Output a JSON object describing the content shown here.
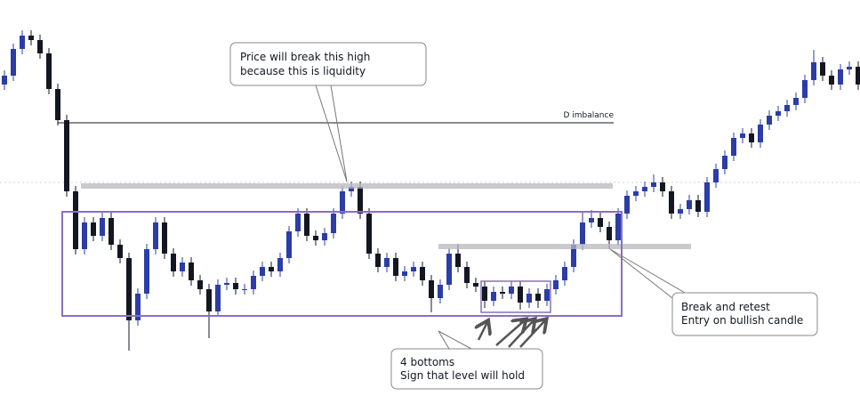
{
  "chart_data": {
    "type": "candlestick",
    "open": [
      359,
      369,
      399,
      414,
      409,
      394,
      354,
      319,
      239,
      174,
      204,
      189,
      209,
      179,
      164,
      94,
      124,
      174,
      204,
      169,
      149,
      159,
      139,
      129,
      104,
      134,
      136,
      129,
      129,
      144,
      154,
      149,
      164,
      194,
      214,
      189,
      184,
      192,
      214,
      239,
      244,
      214,
      169,
      154,
      164,
      144,
      149,
      154,
      139,
      119,
      134,
      169,
      154,
      136,
      132,
      116,
      126,
      124,
      132,
      114,
      124,
      116,
      129,
      139,
      154,
      179,
      204,
      209,
      199,
      184,
      214,
      234,
      239,
      244,
      249,
      239,
      214,
      219,
      229,
      216,
      249,
      264,
      279,
      299,
      304,
      294,
      314,
      324,
      329,
      336,
      344,
      364,
      384,
      369,
      359,
      376,
      379
    ],
    "high": [
      375,
      405,
      420,
      420,
      415,
      400,
      360,
      325,
      245,
      210,
      210,
      215,
      215,
      185,
      170,
      130,
      180,
      210,
      210,
      175,
      165,
      165,
      145,
      135,
      140,
      142,
      142,
      135,
      150,
      160,
      160,
      170,
      200,
      220,
      220,
      195,
      198,
      220,
      245,
      250,
      250,
      220,
      175,
      170,
      170,
      155,
      160,
      160,
      145,
      140,
      175,
      180,
      160,
      142,
      138,
      132,
      132,
      138,
      138,
      130,
      130,
      135,
      145,
      160,
      185,
      215,
      218,
      215,
      205,
      220,
      240,
      245,
      250,
      258,
      255,
      245,
      225,
      235,
      235,
      255,
      270,
      285,
      305,
      310,
      310,
      320,
      330,
      335,
      342,
      350,
      370,
      398,
      390,
      375,
      382,
      385,
      385
    ],
    "low": [
      353,
      363,
      393,
      403,
      388,
      348,
      313,
      233,
      168,
      168,
      183,
      183,
      173,
      158,
      60,
      88,
      118,
      168,
      163,
      143,
      143,
      133,
      123,
      74,
      98,
      128,
      123,
      123,
      123,
      138,
      143,
      143,
      158,
      188,
      183,
      178,
      178,
      186,
      208,
      233,
      208,
      163,
      148,
      148,
      138,
      138,
      143,
      133,
      103,
      113,
      128,
      148,
      130,
      126,
      108,
      110,
      118,
      118,
      106,
      108,
      108,
      110,
      123,
      133,
      148,
      173,
      198,
      193,
      174,
      178,
      208,
      228,
      233,
      238,
      233,
      208,
      208,
      213,
      210,
      210,
      243,
      258,
      273,
      293,
      288,
      288,
      308,
      318,
      323,
      330,
      338,
      358,
      363,
      353,
      353,
      370,
      353
    ],
    "close": [
      369,
      399,
      414,
      409,
      394,
      354,
      319,
      239,
      174,
      204,
      189,
      209,
      179,
      164,
      94,
      124,
      174,
      204,
      169,
      149,
      159,
      139,
      129,
      104,
      134,
      136,
      129,
      129,
      144,
      154,
      149,
      164,
      194,
      214,
      189,
      184,
      192,
      214,
      239,
      244,
      214,
      169,
      154,
      164,
      144,
      149,
      154,
      139,
      119,
      134,
      169,
      154,
      136,
      132,
      116,
      126,
      124,
      132,
      114,
      124,
      116,
      129,
      139,
      154,
      179,
      204,
      209,
      199,
      184,
      214,
      234,
      239,
      244,
      249,
      239,
      214,
      219,
      229,
      216,
      249,
      264,
      279,
      299,
      304,
      294,
      314,
      324,
      329,
      336,
      344,
      364,
      384,
      369,
      359,
      376,
      379,
      359
    ],
    "up_color": "#2b3da6",
    "down_color": "#131722",
    "ylim": [
      0,
      454
    ],
    "annotations": {
      "imbalance": "D imbalance",
      "liquidity": [
        "Price will break this high",
        "because this is liquidity"
      ],
      "bottoms": [
        "4 bottoms",
        "Sign that level will hold"
      ],
      "retest": [
        "Break and retest",
        "Entry on bullish candle"
      ]
    }
  }
}
